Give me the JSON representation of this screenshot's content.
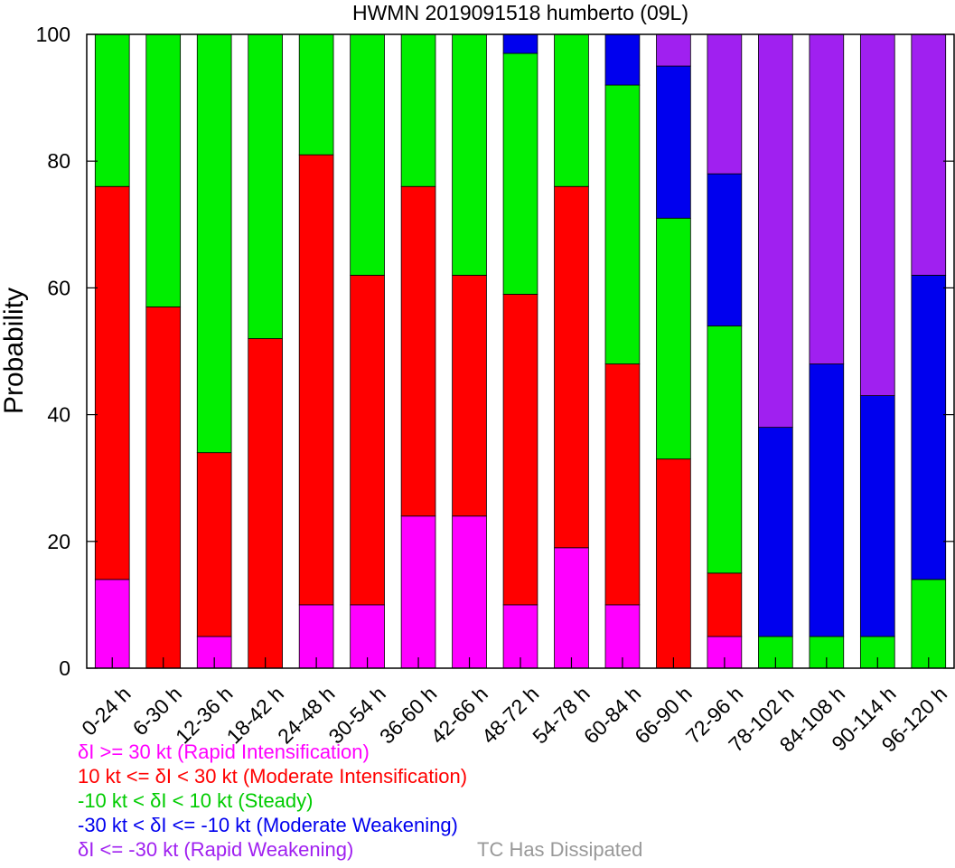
{
  "chart_data": {
    "type": "bar",
    "stacked": true,
    "title": "HWMN 2019091518 humberto (09L)",
    "ylabel": "Probability",
    "ylim": [
      0,
      100
    ],
    "yticks": [
      "0",
      "20",
      "40",
      "60",
      "80",
      "100"
    ],
    "categories": [
      "0-24 h",
      "6-30 h",
      "12-36 h",
      "18-42 h",
      "24-48 h",
      "30-54 h",
      "36-60 h",
      "42-66 h",
      "48-72 h",
      "54-78 h",
      "60-84 h",
      "66-90 h",
      "72-96 h",
      "78-102 h",
      "84-108 h",
      "90-114 h",
      "96-120 h"
    ],
    "series": [
      {
        "name": "δI >= 30 kt (Rapid Intensification)",
        "color": "#ff00ff",
        "values": [
          14,
          0,
          5,
          0,
          10,
          10,
          24,
          24,
          10,
          19,
          10,
          0,
          5,
          0,
          0,
          0,
          0
        ]
      },
      {
        "name": "10 kt <= δI < 30 kt (Moderate Intensification)",
        "color": "#ff0000",
        "values": [
          62,
          57,
          29,
          52,
          71,
          52,
          52,
          38,
          49,
          57,
          38,
          33,
          10,
          0,
          0,
          0,
          0
        ]
      },
      {
        "name": "-10 kt < δI < 10 kt (Steady)",
        "color": "#00ee00",
        "values": [
          24,
          43,
          66,
          48,
          19,
          38,
          24,
          38,
          38,
          24,
          44,
          38,
          39,
          5,
          5,
          5,
          14
        ]
      },
      {
        "name": "-30 kt < δI <= -10 kt (Moderate Weakening)",
        "color": "#0000ee",
        "values": [
          0,
          0,
          0,
          0,
          0,
          0,
          0,
          0,
          3,
          0,
          8,
          24,
          24,
          33,
          43,
          38,
          48
        ]
      },
      {
        "name": "δI <= -30 kt (Rapid Weakening)",
        "color": "#a020f0",
        "values": [
          0,
          0,
          0,
          0,
          0,
          0,
          0,
          0,
          0,
          0,
          0,
          5,
          22,
          62,
          52,
          57,
          38
        ]
      },
      {
        "name": "TC Has Dissipated",
        "color": "#999999",
        "values": [
          0,
          0,
          0,
          0,
          0,
          0,
          0,
          0,
          0,
          0,
          0,
          0,
          0,
          0,
          0,
          0,
          0
        ]
      }
    ],
    "grid": false,
    "legend_position": "bottom-left"
  }
}
